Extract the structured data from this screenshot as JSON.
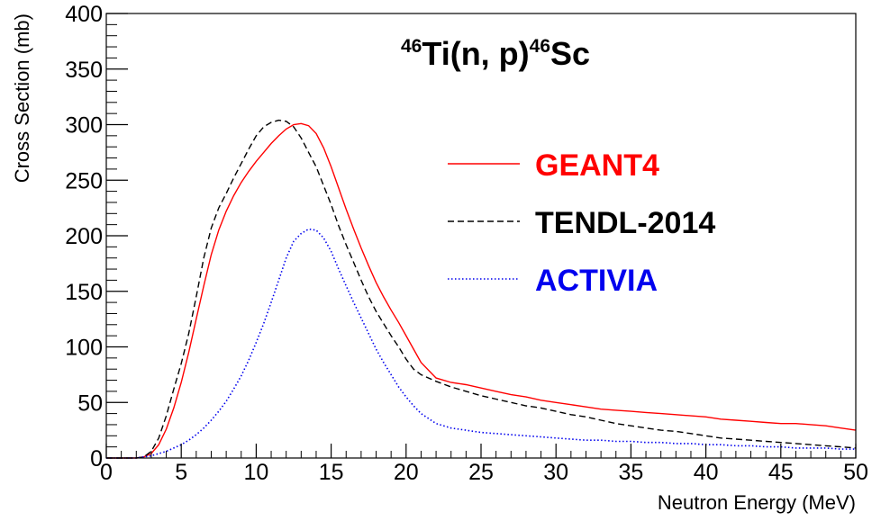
{
  "chart_data": {
    "type": "line",
    "title": {
      "sup1": "46",
      "part1": "Ti(n, p)",
      "sup2": "46",
      "part2": "Sc"
    },
    "xlabel": "Neutron Energy (MeV)",
    "ylabel": "Cross Section (mb)",
    "xlim": [
      0,
      50
    ],
    "ylim": [
      0,
      400
    ],
    "x_ticks": [
      0,
      5,
      10,
      15,
      20,
      25,
      30,
      35,
      40,
      45,
      50
    ],
    "y_ticks": [
      0,
      50,
      100,
      150,
      200,
      250,
      300,
      350,
      400
    ],
    "grid": false,
    "legend_position": "upper-right",
    "series": [
      {
        "name": "GEANT4",
        "color": "#ff0000",
        "style": "solid",
        "x": [
          0,
          1,
          2,
          2.5,
          3,
          3.5,
          4,
          4.5,
          5,
          5.5,
          6,
          6.5,
          7,
          7.5,
          8,
          8.5,
          9,
          9.5,
          10,
          10.5,
          11,
          11.5,
          12,
          12.5,
          13,
          13.5,
          14,
          14.5,
          15,
          15.5,
          16,
          16.5,
          17,
          17.5,
          18,
          18.5,
          19,
          19.5,
          20,
          20.5,
          21,
          22,
          23,
          24,
          25,
          26,
          27,
          28,
          29,
          30,
          31,
          32,
          33,
          34,
          35,
          36,
          37,
          38,
          39,
          40,
          41,
          42,
          43,
          44,
          45,
          46,
          47,
          48,
          49,
          50
        ],
        "values": [
          0,
          0,
          0,
          1,
          4,
          12,
          26,
          45,
          68,
          95,
          125,
          155,
          183,
          205,
          222,
          236,
          248,
          258,
          267,
          275,
          283,
          290,
          296,
          300,
          301,
          299,
          292,
          279,
          262,
          243,
          224,
          206,
          189,
          173,
          158,
          145,
          133,
          122,
          110,
          98,
          86,
          72,
          68,
          66,
          63,
          60,
          57,
          55,
          52,
          50,
          48,
          46,
          44,
          43,
          42,
          41,
          40,
          39,
          38,
          37,
          35,
          34,
          33,
          32,
          31,
          31,
          30,
          29,
          27,
          25
        ]
      },
      {
        "name": "TENDL-2014",
        "color": "#000000",
        "style": "dashed",
        "x": [
          0,
          1,
          2,
          2.5,
          3,
          3.5,
          4,
          4.5,
          5,
          5.5,
          6,
          6.5,
          7,
          7.5,
          8,
          8.5,
          9,
          9.5,
          10,
          10.5,
          11,
          11.5,
          12,
          12.5,
          13,
          13.5,
          14,
          14.5,
          15,
          15.5,
          16,
          16.5,
          17,
          17.5,
          18,
          18.5,
          19,
          19.5,
          20,
          20.5,
          21,
          22,
          23,
          24,
          25,
          26,
          27,
          28,
          29,
          30,
          31,
          32,
          33,
          34,
          35,
          36,
          37,
          38,
          39,
          40,
          41,
          42,
          43,
          44,
          45,
          46,
          47,
          48,
          49,
          50
        ],
        "values": [
          0,
          0,
          0,
          1,
          6,
          18,
          38,
          62,
          85,
          112,
          145,
          180,
          207,
          225,
          238,
          252,
          265,
          278,
          290,
          298,
          302,
          304,
          303,
          298,
          288,
          275,
          262,
          245,
          228,
          209,
          192,
          176,
          160,
          145,
          132,
          121,
          110,
          100,
          89,
          80,
          75,
          69,
          64,
          60,
          56,
          53,
          50,
          47,
          45,
          42,
          39,
          37,
          34,
          31,
          29,
          27,
          25,
          24,
          22,
          20,
          18,
          17,
          16,
          15,
          14,
          13,
          12,
          11,
          10,
          9
        ]
      },
      {
        "name": "ACTIVIA",
        "color": "#0000ee",
        "style": "dotted",
        "x": [
          0,
          1,
          2,
          2.5,
          3,
          3.5,
          4,
          4.5,
          5,
          5.5,
          6,
          6.5,
          7,
          7.5,
          8,
          8.5,
          9,
          9.5,
          10,
          10.5,
          11,
          11.5,
          12,
          12.5,
          13,
          13.5,
          14,
          14.5,
          15,
          15.5,
          16,
          16.5,
          17,
          17.5,
          18,
          18.5,
          19,
          19.5,
          20,
          20.5,
          21,
          22,
          23,
          24,
          25,
          26,
          27,
          28,
          29,
          30,
          31,
          32,
          33,
          34,
          35,
          36,
          37,
          38,
          39,
          40,
          41,
          42,
          43,
          44,
          45,
          46,
          47,
          48,
          49,
          50
        ],
        "values": [
          0,
          0,
          0,
          1,
          2,
          4,
          6,
          9,
          12,
          16,
          21,
          27,
          34,
          42,
          51,
          62,
          74,
          88,
          104,
          121,
          140,
          160,
          180,
          195,
          202,
          206,
          205,
          198,
          186,
          170,
          155,
          140,
          126,
          112,
          98,
          86,
          75,
          64,
          55,
          47,
          40,
          31,
          27,
          25,
          23,
          22,
          21,
          20,
          19,
          18,
          17,
          16,
          16,
          15,
          15,
          14,
          14,
          13,
          13,
          12,
          12,
          11,
          11,
          10,
          10,
          9,
          9,
          9,
          8,
          8
        ]
      }
    ]
  }
}
